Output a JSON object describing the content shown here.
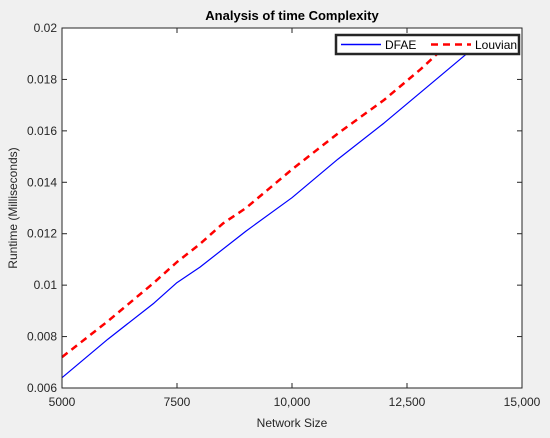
{
  "chart_data": {
    "type": "line",
    "title": "Analysis of time Complexity",
    "xlabel": "Network Size",
    "ylabel": "Runtime (Milliseconds)",
    "xlim": [
      5000,
      15000
    ],
    "ylim": [
      0.006,
      0.02
    ],
    "xticks": [
      5000,
      7500,
      10000,
      12500,
      15000
    ],
    "xtick_labels": [
      "5000",
      "7500",
      "10,000",
      "12,500",
      "15,000"
    ],
    "yticks": [
      0.006,
      0.008,
      0.01,
      0.012,
      0.014,
      0.016,
      0.018,
      0.02
    ],
    "ytick_labels": [
      "0.006",
      "0.008",
      "0.01",
      "0.012",
      "0.014",
      "0.016",
      "0.018",
      "0.02"
    ],
    "grid": false,
    "legend_position": "top-right",
    "series": [
      {
        "name": "DFAE",
        "color": "#0000ff",
        "line_style": "solid",
        "x": [
          5000,
          6000,
          7000,
          7500,
          8000,
          9000,
          10000,
          11000,
          12000,
          13000,
          13800
        ],
        "y": [
          0.0064,
          0.0079,
          0.0093,
          0.0101,
          0.0107,
          0.0121,
          0.0134,
          0.0149,
          0.0163,
          0.0178,
          0.019
        ]
      },
      {
        "name": "Louvian",
        "color": "#ff0000",
        "line_style": "dashed",
        "x": [
          5000,
          6000,
          7000,
          7500,
          8000,
          8500,
          9000,
          10000,
          11000,
          12000,
          12800,
          13400
        ],
        "y": [
          0.0072,
          0.0086,
          0.0101,
          0.0109,
          0.0116,
          0.0124,
          0.013,
          0.0145,
          0.0159,
          0.0172,
          0.0184,
          0.0194
        ]
      }
    ]
  }
}
